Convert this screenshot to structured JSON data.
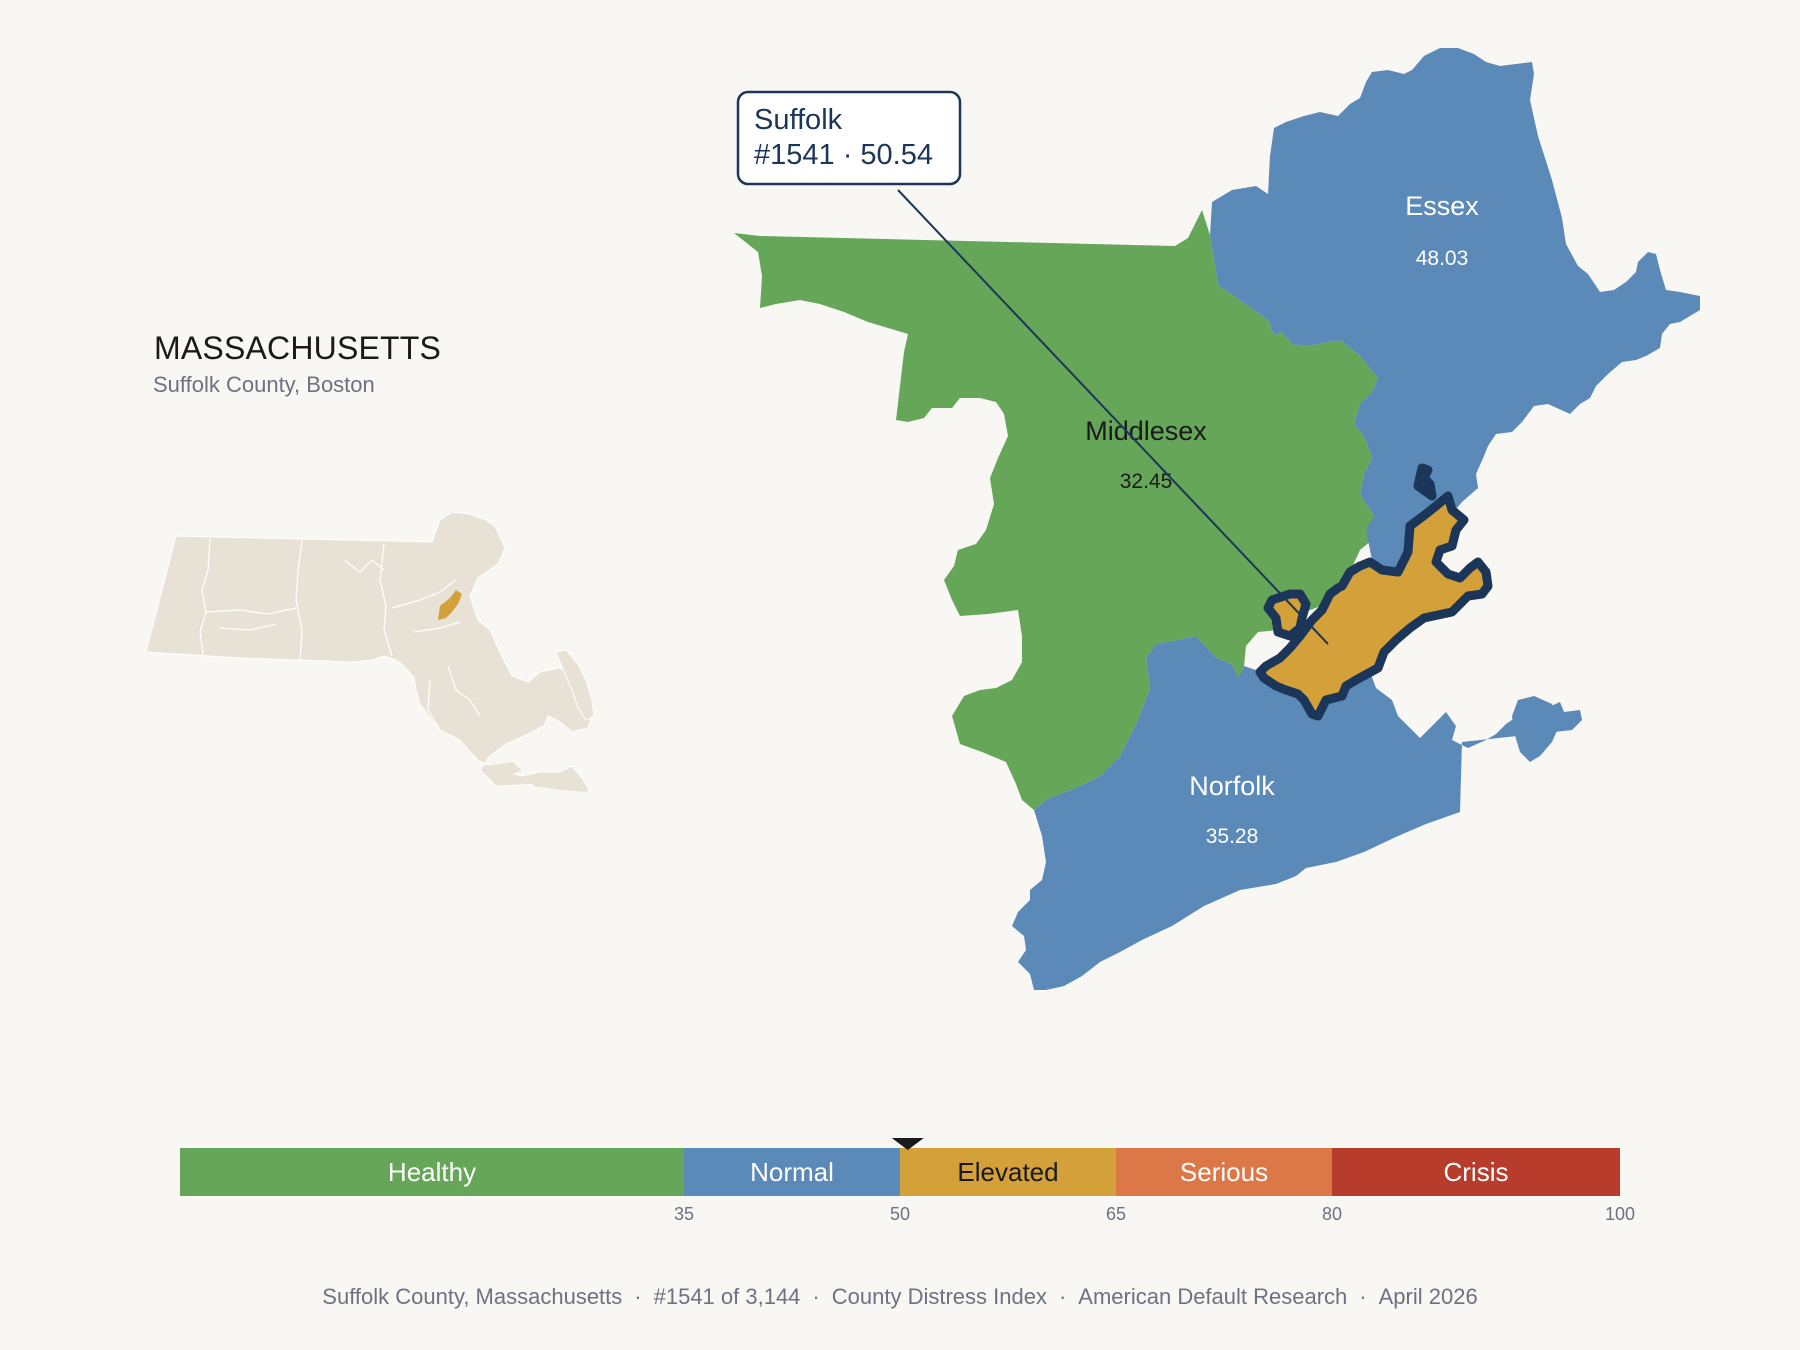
{
  "state": {
    "name": "MASSACHUSETTS",
    "subtitle": "Suffolk County, Boston"
  },
  "callout": {
    "county": "Suffolk",
    "rank_score": "#1541 · 50.54"
  },
  "counties": [
    {
      "name": "Essex",
      "score": "48.03",
      "category": "Normal"
    },
    {
      "name": "Middlesex",
      "score": "32.45",
      "category": "Healthy"
    },
    {
      "name": "Norfolk",
      "score": "35.28",
      "category": "Normal"
    },
    {
      "name": "Suffolk",
      "score": "50.54",
      "category": "Elevated",
      "highlighted": true
    }
  ],
  "colors": {
    "healthy": "#66a659",
    "normal": "#5b89b8",
    "elevated": "#d4a03a",
    "serious": "#dc7848",
    "crisis": "#b83c2c",
    "outline": "#1b3658",
    "state_fill": "#e8e2d6"
  },
  "scale": {
    "marker_value": 50.54,
    "min": 0,
    "max": 100,
    "bands": [
      {
        "label": "Healthy",
        "from": 0,
        "to": 35,
        "color": "#66a659",
        "text_color": "#ffffff"
      },
      {
        "label": "Normal",
        "from": 35,
        "to": 50,
        "color": "#5b89b8",
        "text_color": "#ffffff"
      },
      {
        "label": "Elevated",
        "from": 50,
        "to": 65,
        "color": "#d4a03a",
        "text_color": "#1a1a1a"
      },
      {
        "label": "Serious",
        "from": 65,
        "to": 80,
        "color": "#dc7848",
        "text_color": "#ffffff"
      },
      {
        "label": "Crisis",
        "from": 80,
        "to": 100,
        "color": "#b83c2c",
        "text_color": "#ffffff"
      }
    ],
    "ticks": [
      "35",
      "50",
      "65",
      "80",
      "100"
    ]
  },
  "footer": {
    "location": "Suffolk County, Massachusetts",
    "rank": "#1541 of 3,144",
    "index": "County Distress Index",
    "source": "American Default Research",
    "date": "April 2026"
  }
}
